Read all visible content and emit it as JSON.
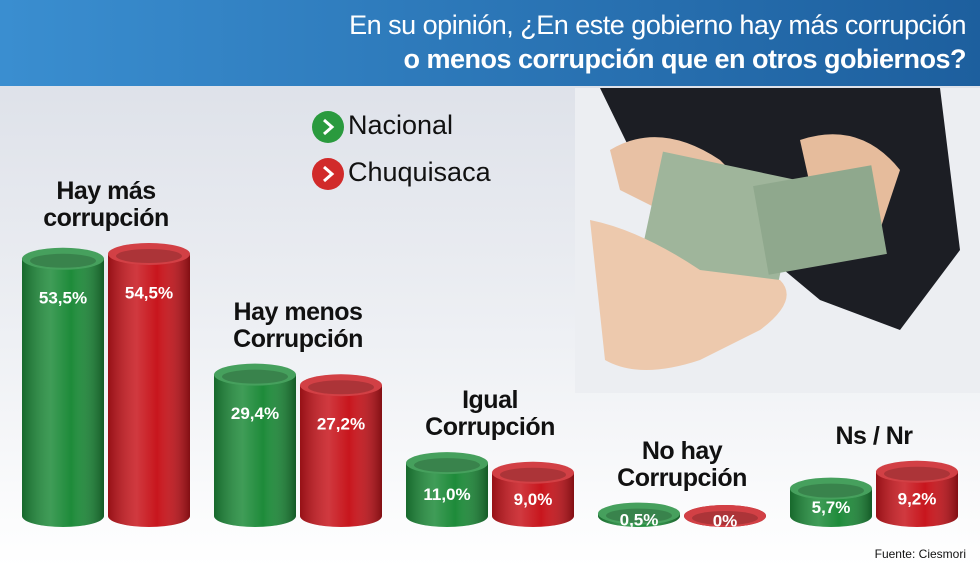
{
  "chart_data": {
    "type": "cylinder-bar",
    "title": [
      "En su opinión, ¿En este gobierno hay más corrupción",
      "o menos corrupción que en otros gobiernos?"
    ],
    "categories": [
      "Hay más corrupción",
      "Hay menos Corrupción",
      "Igual Corrupción",
      "No hay Corrupción",
      "Ns / Nr"
    ],
    "series": [
      {
        "name": "Nacional",
        "color": "#1e8b3a",
        "values": [
          53.5,
          29.4,
          11.0,
          0.5,
          5.7
        ],
        "value_labels": [
          "53,5%",
          "29,4%",
          "11,0%",
          "0,5%",
          "5,7%"
        ]
      },
      {
        "name": "Chuquisaca",
        "color": "#c8161d",
        "values": [
          54.5,
          27.2,
          9.0,
          0,
          9.2
        ],
        "value_labels": [
          "54,5%",
          "27,2%",
          "9,0%",
          "0%",
          "9,2%"
        ]
      }
    ],
    "source": "Fuente: Ciesmori"
  }
}
